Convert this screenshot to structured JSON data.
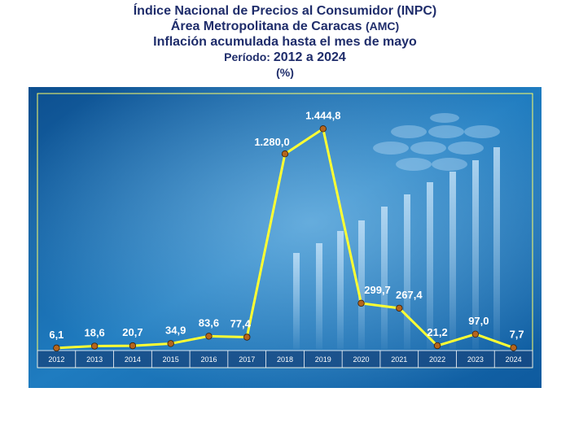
{
  "titles": {
    "line1": "Índice Nacional de Precios al Consumidor (INPC)",
    "line2_main": "Área Metropolitana de Caracas",
    "line2_small": "(AMC)",
    "line3": "Inflación acumulada hasta el mes de mayo",
    "line4_label": "Período:",
    "line4_range": "2012 a 2024",
    "line5": "(%)"
  },
  "chart_data": {
    "type": "line",
    "categories": [
      "2012",
      "2013",
      "2014",
      "2015",
      "2016",
      "2017",
      "2018",
      "2019",
      "2020",
      "2021",
      "2022",
      "2023",
      "2024"
    ],
    "values": [
      6.1,
      18.6,
      20.7,
      34.9,
      83.6,
      77.4,
      1280.0,
      1444.8,
      299.7,
      267.4,
      21.2,
      97.0,
      7.7
    ],
    "labels": [
      "6,1",
      "18,6",
      "20,7",
      "34,9",
      "83,6",
      "77,4",
      "1.280,0",
      "1.444,8",
      "299,7",
      "267,4",
      "21,2",
      "97,0",
      "7,7"
    ],
    "ylim": [
      0,
      1500
    ],
    "line_color": "#ffff33",
    "marker_color": "#b5651d",
    "background_color": "#1a6fb0",
    "grid": false,
    "legend": false
  }
}
